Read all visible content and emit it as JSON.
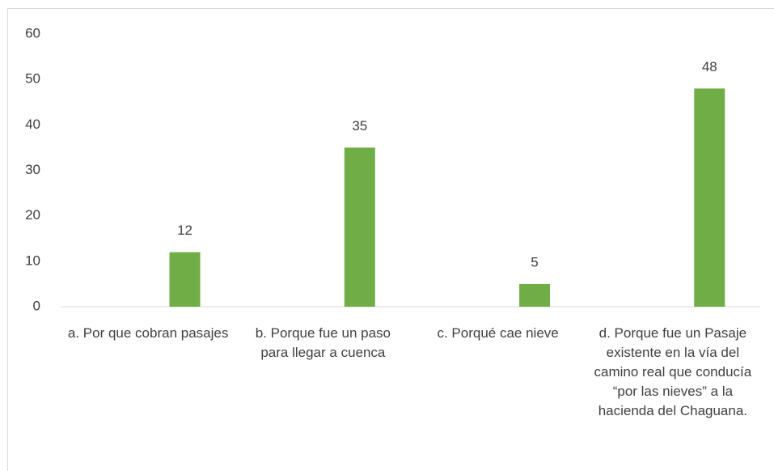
{
  "chart_data": {
    "type": "bar",
    "categories": [
      "a. Por que cobran pasajes",
      "b. Porque fue un paso para llegar a cuenca",
      "c. Porqué cae nieve",
      "d. Porque fue un Pasaje existente en la vía del camino real que conducía “por las nieves” a la hacienda del Chaguana."
    ],
    "values": [
      12,
      35,
      5,
      48
    ],
    "color": "#70ad47",
    "ylim": [
      0,
      60
    ],
    "yticks": [
      0,
      10,
      20,
      30,
      40,
      50,
      60
    ],
    "grid": false
  }
}
